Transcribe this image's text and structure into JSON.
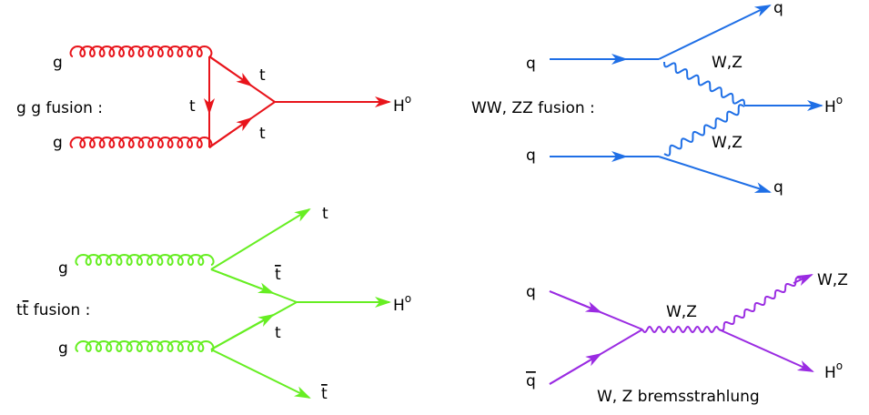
{
  "colors": {
    "gg_fusion": "#e8141b",
    "ww_zz_fusion": "#1f6fe6",
    "tt_fusion": "#66ee22",
    "bremsstrahlung": "#9a2be2"
  },
  "diagrams": {
    "gg_fusion": {
      "title": "g g fusion :",
      "labels": {
        "g_top": "g",
        "g_bottom": "g",
        "t_upper": "t",
        "t_mid": "t",
        "t_lower": "t",
        "higgs": "H",
        "higgs_sup": "o"
      }
    },
    "ww_zz_fusion": {
      "title": "WW, ZZ fusion :",
      "labels": {
        "q_in_top": "q",
        "q_in_bottom": "q",
        "q_out_top": "q",
        "q_out_bottom": "q",
        "boson_upper": "W,Z",
        "boson_lower": "W,Z",
        "higgs": "H",
        "higgs_sup": "o"
      }
    },
    "tt_fusion": {
      "title_lead": "t",
      "title_bar": "t",
      "title_rest": " fusion :",
      "labels": {
        "g_top": "g",
        "g_bottom": "g",
        "t_out": "t",
        "tbar_mid": "t",
        "t_mid": "t",
        "tbar_out": "t",
        "higgs": "H",
        "higgs_sup": "o"
      }
    },
    "bremsstrahlung": {
      "title": "W, Z bremsstrahlung",
      "labels": {
        "q_in": "q",
        "qbar_in": "q",
        "boson_mid": "W,Z",
        "boson_out": "W,Z",
        "higgs": "H",
        "higgs_sup": "o"
      }
    }
  }
}
